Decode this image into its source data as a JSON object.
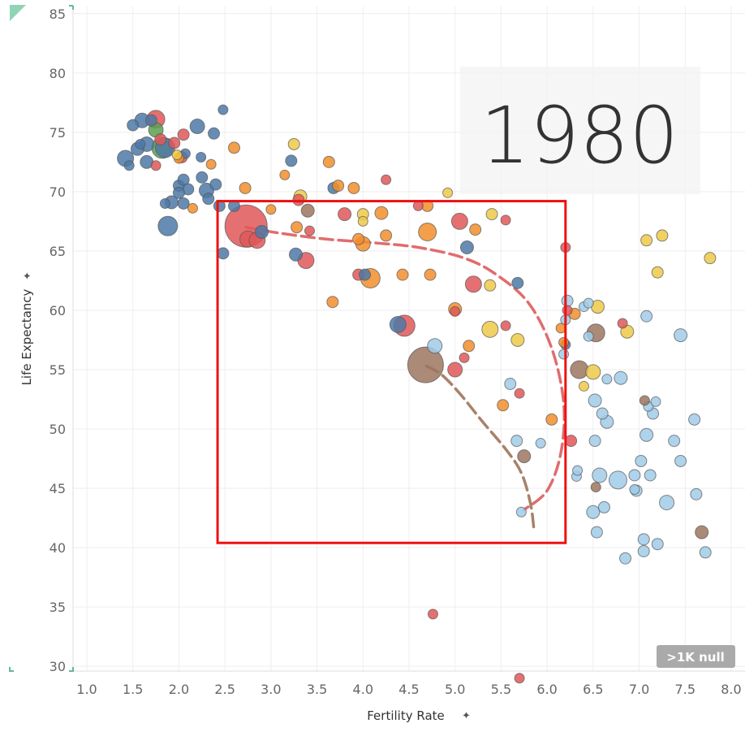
{
  "chart_data": {
    "type": "scatter",
    "xlabel": "Fertility Rate",
    "ylabel": "Life Expectancy",
    "xlim": [
      0.85,
      8.15
    ],
    "ylim": [
      29.6,
      85.6
    ],
    "x_ticks": [
      "1.0",
      "1.5",
      "2.0",
      "2.5",
      "3.0",
      "3.5",
      "4.0",
      "4.5",
      "5.0",
      "5.5",
      "6.0",
      "6.5",
      "7.0",
      "7.5",
      "8.0"
    ],
    "y_ticks": [
      "30",
      "35",
      "40",
      "45",
      "50",
      "55",
      "60",
      "65",
      "70",
      "75",
      "80",
      "85"
    ],
    "grid": true,
    "year_label": "1980",
    "null_badge": ">1K null",
    "colors": {
      "red": "#e15759",
      "blue": "#4e79a7",
      "green": "#59a14f",
      "orange": "#f28e2b",
      "yellow": "#edc948",
      "lightblue": "#a0cbe8",
      "brown": "#9c755f",
      "highlight_box": "#ee1111"
    },
    "highlight_box": {
      "x": [
        2.42,
        6.2
      ],
      "y": [
        40.4,
        69.2
      ]
    },
    "trails": [
      {
        "color": "red",
        "points": [
          [
            2.73,
            67.0
          ],
          [
            3.1,
            66.5
          ],
          [
            3.6,
            66.0
          ],
          [
            4.1,
            65.7
          ],
          [
            4.6,
            65.3
          ],
          [
            5.1,
            64.4
          ],
          [
            5.45,
            63.0
          ],
          [
            5.8,
            60.6
          ],
          [
            6.05,
            56.8
          ],
          [
            6.18,
            52.2
          ],
          [
            6.15,
            48.0
          ],
          [
            6.0,
            44.8
          ],
          [
            5.75,
            43.2
          ]
        ]
      },
      {
        "color": "brown",
        "points": [
          [
            4.69,
            55.3
          ],
          [
            4.85,
            54.6
          ],
          [
            5.05,
            53.0
          ],
          [
            5.3,
            50.6
          ],
          [
            5.55,
            48.3
          ],
          [
            5.72,
            46.3
          ],
          [
            5.82,
            43.7
          ],
          [
            5.86,
            41.3
          ]
        ]
      }
    ],
    "series": [
      {
        "name": "red",
        "points": [
          [
            1.75,
            76.1,
            11
          ],
          [
            1.8,
            74.4,
            7
          ],
          [
            1.95,
            74.1,
            7
          ],
          [
            2.05,
            74.8,
            7
          ],
          [
            2.03,
            72.9,
            7
          ],
          [
            1.75,
            72.2,
            6
          ],
          [
            2.73,
            67.1,
            26
          ],
          [
            2.75,
            66.0,
            10
          ],
          [
            2.85,
            65.9,
            10
          ],
          [
            3.3,
            69.3,
            7
          ],
          [
            3.38,
            64.2,
            10
          ],
          [
            3.42,
            66.7,
            6
          ],
          [
            3.8,
            68.1,
            8
          ],
          [
            3.95,
            63.0,
            7
          ],
          [
            4.25,
            71.0,
            6
          ],
          [
            4.45,
            58.7,
            13
          ],
          [
            4.6,
            68.8,
            6
          ],
          [
            5.0,
            59.9,
            6
          ],
          [
            5.05,
            67.5,
            10
          ],
          [
            5.2,
            62.2,
            10
          ],
          [
            5.1,
            56.0,
            6
          ],
          [
            5.0,
            55.0,
            9
          ],
          [
            5.55,
            58.7,
            6
          ],
          [
            5.55,
            67.6,
            6
          ],
          [
            5.7,
            53.0,
            6
          ],
          [
            6.2,
            65.3,
            6
          ],
          [
            6.22,
            60.0,
            6
          ],
          [
            6.26,
            49.0,
            7
          ],
          [
            6.82,
            58.9,
            6
          ],
          [
            4.76,
            34.4,
            6
          ],
          [
            5.7,
            29.0,
            6
          ]
        ]
      },
      {
        "name": "blue",
        "points": [
          [
            2.48,
            76.9,
            6
          ],
          [
            1.42,
            72.8,
            10
          ],
          [
            1.5,
            75.6,
            7
          ],
          [
            1.6,
            76.0,
            9
          ],
          [
            1.65,
            74.0,
            9
          ],
          [
            1.7,
            76.0,
            7
          ],
          [
            1.55,
            73.6,
            8
          ],
          [
            1.65,
            72.5,
            8
          ],
          [
            1.85,
            73.7,
            12
          ],
          [
            1.92,
            69.1,
            8
          ],
          [
            1.88,
            67.1,
            12
          ],
          [
            2.0,
            70.5,
            7
          ],
          [
            2.05,
            71.0,
            7
          ],
          [
            2.1,
            70.2,
            7
          ],
          [
            2.05,
            69.0,
            7
          ],
          [
            2.2,
            75.5,
            9
          ],
          [
            2.25,
            71.2,
            7
          ],
          [
            2.3,
            70.1,
            9
          ],
          [
            2.38,
            74.9,
            7
          ],
          [
            2.4,
            70.6,
            7
          ],
          [
            2.32,
            69.4,
            7
          ],
          [
            2.44,
            68.8,
            7
          ],
          [
            2.48,
            64.8,
            7
          ],
          [
            2.6,
            68.8,
            7
          ],
          [
            2.9,
            66.6,
            8
          ],
          [
            3.22,
            72.6,
            7
          ],
          [
            3.27,
            64.7,
            8
          ],
          [
            3.68,
            70.3,
            7
          ],
          [
            4.02,
            63.0,
            7
          ],
          [
            4.38,
            58.8,
            10
          ],
          [
            5.13,
            65.3,
            8
          ],
          [
            5.68,
            62.3,
            7
          ],
          [
            6.2,
            57.1,
            6
          ],
          [
            1.58,
            74.0,
            6
          ],
          [
            2.07,
            73.2,
            6
          ],
          [
            2.0,
            69.9,
            7
          ],
          [
            1.85,
            69.0,
            6
          ],
          [
            1.46,
            72.2,
            6
          ],
          [
            2.24,
            72.9,
            6
          ]
        ]
      },
      {
        "name": "green",
        "points": [
          [
            1.82,
            73.7,
            13
          ],
          [
            1.75,
            75.2,
            9
          ]
        ]
      },
      {
        "name": "orange",
        "points": [
          [
            2.0,
            72.8,
            6
          ],
          [
            2.6,
            73.7,
            7
          ],
          [
            2.72,
            70.3,
            7
          ],
          [
            3.0,
            68.5,
            6
          ],
          [
            3.15,
            71.4,
            6
          ],
          [
            3.28,
            67.0,
            7
          ],
          [
            3.63,
            72.5,
            7
          ],
          [
            3.73,
            70.5,
            7
          ],
          [
            3.67,
            60.7,
            7
          ],
          [
            3.9,
            70.3,
            7
          ],
          [
            3.95,
            66.0,
            7
          ],
          [
            4.0,
            65.6,
            9
          ],
          [
            4.08,
            62.7,
            12
          ],
          [
            4.2,
            68.2,
            8
          ],
          [
            4.25,
            66.3,
            7
          ],
          [
            4.43,
            63.0,
            7
          ],
          [
            4.7,
            68.8,
            7
          ],
          [
            4.7,
            66.6,
            11
          ],
          [
            4.73,
            63.0,
            7
          ],
          [
            5.0,
            60.1,
            8
          ],
          [
            5.15,
            57.0,
            7
          ],
          [
            5.22,
            66.8,
            7
          ],
          [
            5.52,
            52.0,
            7
          ],
          [
            6.05,
            50.8,
            7
          ],
          [
            6.15,
            58.5,
            6
          ],
          [
            6.3,
            59.7,
            7
          ],
          [
            6.18,
            57.3,
            6
          ],
          [
            2.35,
            72.3,
            6
          ],
          [
            2.15,
            68.6,
            6
          ]
        ]
      },
      {
        "name": "yellow",
        "points": [
          [
            1.98,
            73.1,
            6
          ],
          [
            3.25,
            74.0,
            7
          ],
          [
            3.32,
            69.6,
            8
          ],
          [
            4.0,
            68.1,
            7
          ],
          [
            4.0,
            67.5,
            6
          ],
          [
            4.92,
            69.9,
            6
          ],
          [
            5.4,
            68.1,
            7
          ],
          [
            5.38,
            62.1,
            7
          ],
          [
            5.38,
            58.4,
            10
          ],
          [
            5.68,
            57.5,
            8
          ],
          [
            6.5,
            54.8,
            9
          ],
          [
            6.55,
            60.3,
            8
          ],
          [
            6.87,
            58.2,
            8
          ],
          [
            7.08,
            65.9,
            7
          ],
          [
            7.2,
            63.2,
            7
          ],
          [
            7.25,
            66.3,
            7
          ],
          [
            7.77,
            64.4,
            7
          ],
          [
            6.4,
            53.6,
            6
          ]
        ]
      },
      {
        "name": "lightblue",
        "points": [
          [
            4.78,
            57.0,
            9
          ],
          [
            5.6,
            53.8,
            7
          ],
          [
            5.67,
            49.0,
            7
          ],
          [
            5.72,
            43.0,
            6
          ],
          [
            5.93,
            48.8,
            6
          ],
          [
            6.18,
            56.3,
            6
          ],
          [
            6.2,
            59.2,
            6
          ],
          [
            6.22,
            60.8,
            7
          ],
          [
            6.32,
            46.0,
            6
          ],
          [
            6.33,
            46.5,
            6
          ],
          [
            6.4,
            60.3,
            6
          ],
          [
            6.45,
            60.6,
            6
          ],
          [
            6.45,
            57.8,
            6
          ],
          [
            6.5,
            43.0,
            8
          ],
          [
            6.52,
            49.0,
            7
          ],
          [
            6.52,
            52.4,
            8
          ],
          [
            6.54,
            41.3,
            7
          ],
          [
            6.57,
            46.1,
            9
          ],
          [
            6.6,
            51.3,
            7
          ],
          [
            6.62,
            43.4,
            7
          ],
          [
            6.65,
            50.6,
            8
          ],
          [
            6.65,
            54.2,
            6
          ],
          [
            6.77,
            45.7,
            11
          ],
          [
            6.8,
            54.3,
            8
          ],
          [
            6.85,
            39.1,
            7
          ],
          [
            6.95,
            46.1,
            7
          ],
          [
            6.97,
            44.8,
            7
          ],
          [
            7.02,
            47.3,
            7
          ],
          [
            7.05,
            40.7,
            7
          ],
          [
            7.05,
            39.7,
            7
          ],
          [
            7.08,
            49.5,
            8
          ],
          [
            7.08,
            59.5,
            7
          ],
          [
            7.1,
            51.9,
            6
          ],
          [
            7.12,
            46.1,
            7
          ],
          [
            7.15,
            51.3,
            7
          ],
          [
            7.18,
            52.3,
            6
          ],
          [
            7.2,
            40.3,
            7
          ],
          [
            7.3,
            43.8,
            9
          ],
          [
            7.38,
            49.0,
            7
          ],
          [
            7.45,
            47.3,
            7
          ],
          [
            7.45,
            57.9,
            8
          ],
          [
            7.6,
            50.8,
            7
          ],
          [
            7.62,
            44.5,
            7
          ],
          [
            7.72,
            39.6,
            7
          ],
          [
            6.95,
            44.9,
            6
          ]
        ]
      },
      {
        "name": "brown",
        "points": [
          [
            3.4,
            68.4,
            8
          ],
          [
            4.68,
            55.4,
            22
          ],
          [
            5.75,
            47.7,
            8
          ],
          [
            6.35,
            55.0,
            11
          ],
          [
            6.53,
            58.1,
            11
          ],
          [
            6.53,
            45.1,
            6
          ],
          [
            7.06,
            52.4,
            6
          ],
          [
            7.68,
            41.3,
            8
          ]
        ]
      }
    ]
  }
}
